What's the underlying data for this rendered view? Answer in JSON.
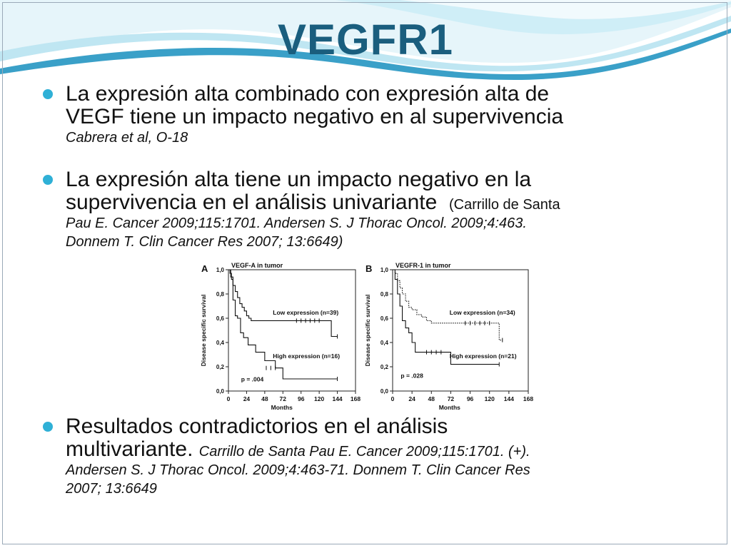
{
  "title": "VEGFR1",
  "bullets": [
    {
      "line1": "La expresión alta combinado con expresión alta de",
      "line2": "VEGF tiene un impacto negativo en al supervivencia",
      "cite": "Cabrera et al, O-18"
    },
    {
      "line1": "La expresión alta tiene un impacto negativo en la",
      "line2": "supervivencia en el análisis univariante",
      "cite_inline": "(Carrillo de Santa",
      "cite_line2": "Pau E. Cancer 2009;115:1701. Andersen S. J Thorac Oncol. 2009;4:463.",
      "cite_line3": "Donnem T. Clin Cancer Res 2007; 13:6649)"
    },
    {
      "line1": "Resultados contradictorios en el análisis",
      "line2": "multivariante.",
      "cite_inline": "Carrillo de Santa Pau E. Cancer 2009;115:1701. (+).",
      "cite_line2": "Andersen S. J Thorac Oncol. 2009;4:463-71. Donnem T. Clin Cancer Res",
      "cite_line3": "2007; 13:6649"
    }
  ],
  "colors": {
    "title": "#1a5e7e",
    "bullet": "#2fb0d6",
    "wave_dark": "#3aa0c8",
    "wave_light": "#bfe6f2"
  },
  "chart_data": [
    {
      "type": "line",
      "panel": "A",
      "title": "VEGF-A in tumor",
      "xlabel": "Months",
      "ylabel": "Disease specific survival",
      "xlim": [
        0,
        168
      ],
      "ylim": [
        0,
        1.0
      ],
      "xticks": [
        "0",
        "24",
        "48",
        "72",
        "96",
        "120",
        "144",
        "168"
      ],
      "yticks": [
        "0,0",
        "0,2",
        "0,4",
        "0,6",
        "0,8",
        "1,0"
      ],
      "pvalue": "p = .004",
      "series": [
        {
          "name": "Low expression (n=39)",
          "style": "solid",
          "x": [
            0,
            2,
            4,
            6,
            9,
            12,
            15,
            18,
            21,
            24,
            27,
            30,
            120,
            136,
            144
          ],
          "y": [
            1.0,
            0.97,
            0.92,
            0.87,
            0.82,
            0.77,
            0.72,
            0.69,
            0.66,
            0.62,
            0.6,
            0.58,
            0.58,
            0.45,
            0.45
          ]
        },
        {
          "name": "High expression (n=16)",
          "style": "solid",
          "x": [
            0,
            3,
            6,
            9,
            12,
            16,
            20,
            26,
            36,
            48,
            62,
            72,
            144
          ],
          "y": [
            1.0,
            0.94,
            0.75,
            0.62,
            0.6,
            0.48,
            0.44,
            0.38,
            0.32,
            0.25,
            0.19,
            0.1,
            0.1
          ]
        }
      ]
    },
    {
      "type": "line",
      "panel": "B",
      "title": "VEGFR-1 in tumor",
      "xlabel": "Months",
      "ylabel": "Disease specific survival",
      "xlim": [
        0,
        168
      ],
      "ylim": [
        0,
        1.0
      ],
      "xticks": [
        "0",
        "24",
        "48",
        "72",
        "96",
        "120",
        "144",
        "168"
      ],
      "yticks": [
        "0,0",
        "0,2",
        "0,4",
        "0,6",
        "0,8",
        "1,0"
      ],
      "pvalue": "p = .028",
      "series": [
        {
          "name": "Low expression (n=34)",
          "style": "dotted",
          "x": [
            0,
            3,
            6,
            9,
            12,
            16,
            20,
            24,
            30,
            36,
            42,
            48,
            120,
            132,
            136
          ],
          "y": [
            1.0,
            0.97,
            0.91,
            0.85,
            0.8,
            0.74,
            0.69,
            0.67,
            0.63,
            0.61,
            0.58,
            0.56,
            0.56,
            0.42,
            0.42
          ]
        },
        {
          "name": "High expression (n=21)",
          "style": "solid",
          "x": [
            0,
            3,
            6,
            9,
            12,
            16,
            20,
            24,
            28,
            36,
            60,
            72,
            132
          ],
          "y": [
            1.0,
            0.92,
            0.8,
            0.7,
            0.58,
            0.52,
            0.48,
            0.4,
            0.32,
            0.32,
            0.32,
            0.22,
            0.22
          ]
        }
      ]
    }
  ]
}
